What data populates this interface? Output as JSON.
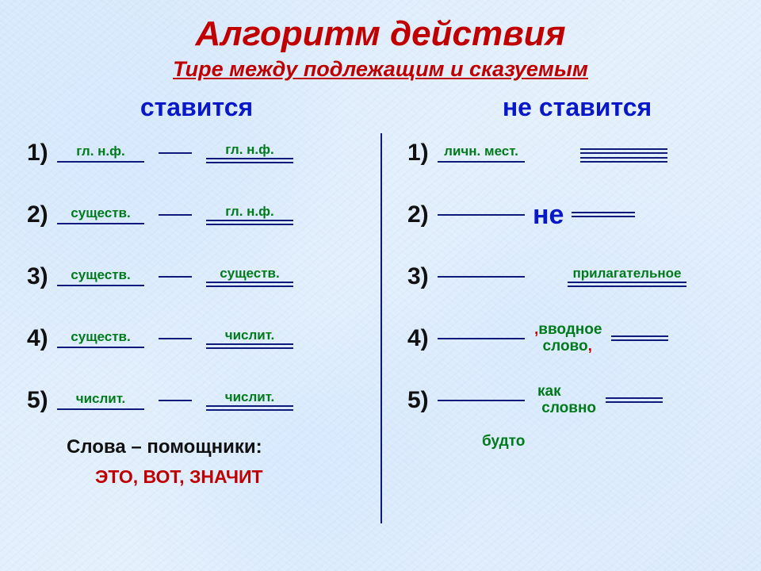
{
  "background": {
    "base_gradient": [
      "#d8e9fb",
      "#e4f0fc",
      "#dbeafc"
    ],
    "texture": "frost"
  },
  "title": {
    "text": "Алгоритм действия",
    "color": "#c00000",
    "fontsize": 44
  },
  "subtitle": {
    "text": "Тире между подлежащим и сказуемым",
    "color": "#c00000",
    "fontsize": 27
  },
  "left": {
    "header": {
      "text": "ставится",
      "color": "#0818c8",
      "fontsize": 32
    },
    "rows": [
      {
        "n": "1)",
        "left_label": "гл. н.ф.",
        "right_label": "гл. н.ф.",
        "dash": true,
        "label_color": "#007a1a"
      },
      {
        "n": "2)",
        "left_label": "существ.",
        "right_label": "гл. н.ф.",
        "dash": true,
        "label_color": "#007a1a"
      },
      {
        "n": "3)",
        "left_label": "существ.",
        "right_label": "существ.",
        "dash": true,
        "label_color": "#007a1a"
      },
      {
        "n": "4)",
        "left_label": "существ.",
        "right_label": "числит.",
        "dash": true,
        "label_color": "#007a1a"
      },
      {
        "n": "5)",
        "left_label": "числит.",
        "right_label": "числит.",
        "dash": true,
        "label_color": "#007a1a"
      }
    ],
    "helpers_title": "Слова – помощники:",
    "helpers_list": "ЭТО, ВОТ, ЗНАЧИТ",
    "helpers_list_color": "#c00000"
  },
  "right": {
    "header": {
      "text": "не ставится",
      "color": "#0818c8",
      "fontsize": 32
    },
    "rows": [
      {
        "n": "1)",
        "kind": "labels",
        "left_label": "личн. мест.",
        "double_right_offset": true,
        "label_color": "#007a1a"
      },
      {
        "n": "2)",
        "kind": "word",
        "mid": "не"
      },
      {
        "n": "3)",
        "kind": "adjective",
        "right_label": "прилагательное",
        "label_color": "#007a1a"
      },
      {
        "n": "4)",
        "kind": "intro",
        "mid_l1": ",вводное",
        "mid_l2": "слово,",
        "mid_color": "#007a1a"
      },
      {
        "n": "5)",
        "kind": "compare",
        "mid_l1": "как",
        "mid_l2": "словно",
        "mid_color": "#007a1a"
      }
    ],
    "budto": {
      "text": "будто",
      "color": "#007a1a"
    }
  },
  "line": {
    "color": "#0f1a7a",
    "single_w": 110,
    "double_w": 110,
    "dash_w": 42,
    "gap": 18
  }
}
